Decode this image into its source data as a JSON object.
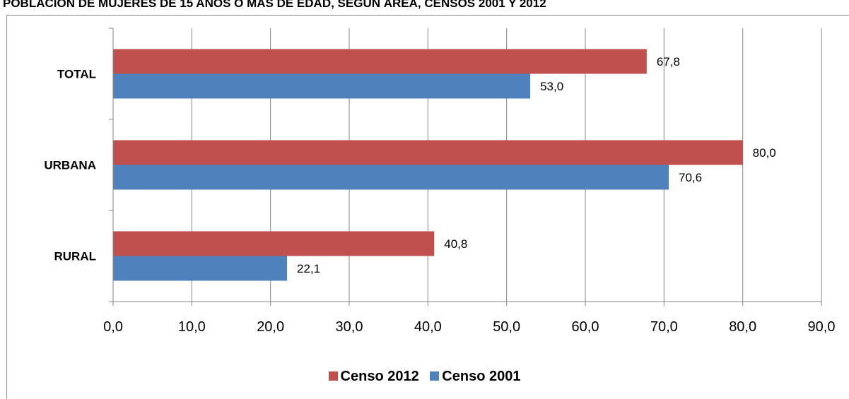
{
  "chart_data": {
    "type": "bar",
    "orientation": "horizontal",
    "title": "POBLACIÓN DE MUJERES DE 15 AÑOS O MÁS DE EDAD, SEGÚN ÁREA, CENSOS 2001 Y 2012",
    "categories": [
      "TOTAL",
      "URBANA",
      "RURAL"
    ],
    "series": [
      {
        "name": "Censo 2012",
        "color": "#C0504D",
        "values": [
          67.8,
          80.0,
          40.8
        ],
        "labels": [
          "67,8",
          "80,0",
          "40,8"
        ]
      },
      {
        "name": "Censo 2001",
        "color": "#4F81BD",
        "values": [
          53.0,
          70.6,
          22.1
        ],
        "labels": [
          "53,0",
          "70,6",
          "22,1"
        ]
      }
    ],
    "xlim": [
      0,
      90
    ],
    "xticks": [
      0,
      10,
      20,
      30,
      40,
      50,
      60,
      70,
      80,
      90
    ],
    "xtick_labels": [
      "0,0",
      "10,0",
      "20,0",
      "30,0",
      "40,0",
      "50,0",
      "60,0",
      "70,0",
      "80,0",
      "90,0"
    ],
    "grid": true,
    "legend": "bottom"
  }
}
